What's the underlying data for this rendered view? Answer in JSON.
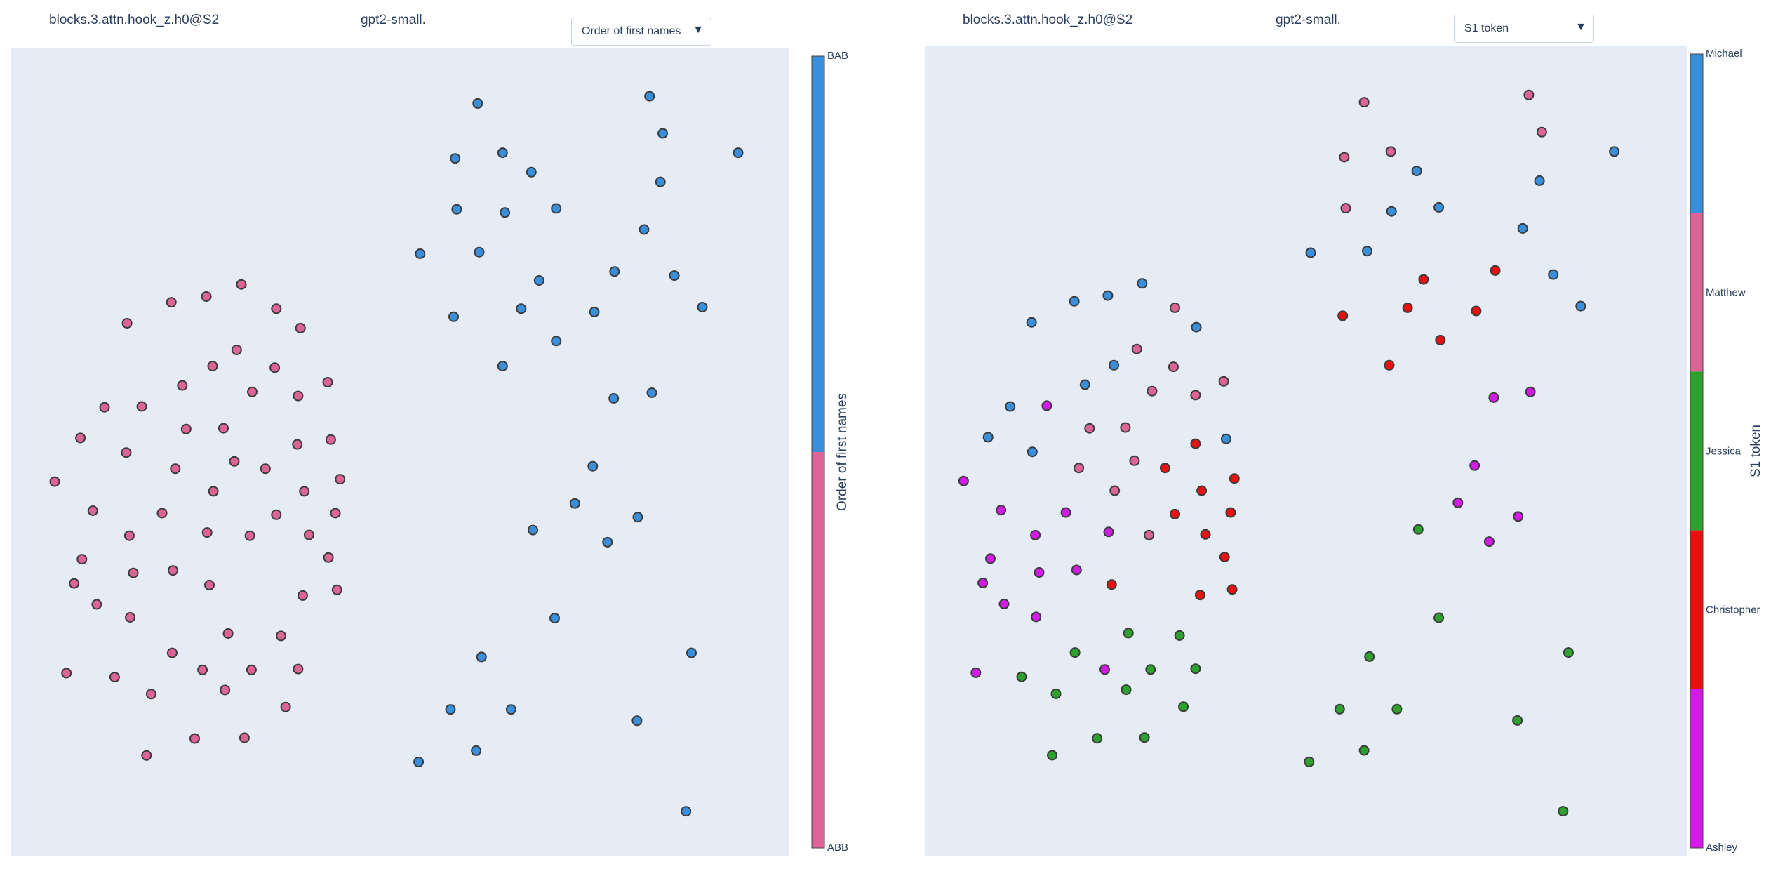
{
  "left": {
    "title": "blocks.3.attn.hook_z.h0@S2",
    "model": "gpt2-small.",
    "dropdown_label": "Order of first names",
    "colorbar_title": "Order of first names",
    "categories": [
      {
        "name": "BAB",
        "color": "#3a8fdb"
      },
      {
        "name": "ABB",
        "color": "#dc6496"
      }
    ]
  },
  "right": {
    "title": "blocks.3.attn.hook_z.h0@S2",
    "model": "gpt2-small.",
    "dropdown_label": "S1 token",
    "colorbar_title": "S1 token",
    "categories": [
      {
        "name": "Michael",
        "color": "#3a8fdb"
      },
      {
        "name": "Matthew",
        "color": "#dc6496"
      },
      {
        "name": "Jessica",
        "color": "#2ea02e"
      },
      {
        "name": "Christopher",
        "color": "#e81010"
      },
      {
        "name": "Ashley",
        "color": "#d21ce6"
      }
    ]
  },
  "dropdown_caret": "triangle-down-icon",
  "colors": {
    "plot_bg": "#e5ecf6",
    "marker_edge": "#3b3b3b"
  },
  "chart_data": [
    {
      "type": "scatter",
      "title": "blocks.3.attn.hook_z.h0@S2",
      "colorbar_title": "Order of first names",
      "xlim": [
        0,
        100
      ],
      "ylim": [
        0,
        100
      ],
      "legend": "right",
      "grid": false,
      "points": [
        {
          "x": 60.0,
          "y": 93.1,
          "c": "BAB"
        },
        {
          "x": 82.1,
          "y": 94.0,
          "c": "BAB"
        },
        {
          "x": 83.8,
          "y": 89.4,
          "c": "BAB"
        },
        {
          "x": 93.5,
          "y": 87.0,
          "c": "BAB"
        },
        {
          "x": 57.1,
          "y": 86.3,
          "c": "BAB"
        },
        {
          "x": 63.2,
          "y": 87.0,
          "c": "BAB"
        },
        {
          "x": 66.9,
          "y": 84.6,
          "c": "BAB"
        },
        {
          "x": 83.5,
          "y": 83.4,
          "c": "BAB"
        },
        {
          "x": 57.3,
          "y": 80.0,
          "c": "BAB"
        },
        {
          "x": 63.5,
          "y": 79.6,
          "c": "BAB"
        },
        {
          "x": 70.1,
          "y": 80.1,
          "c": "BAB"
        },
        {
          "x": 81.4,
          "y": 77.5,
          "c": "BAB"
        },
        {
          "x": 52.6,
          "y": 74.5,
          "c": "BAB"
        },
        {
          "x": 60.2,
          "y": 74.7,
          "c": "BAB"
        },
        {
          "x": 77.6,
          "y": 72.3,
          "c": "BAB"
        },
        {
          "x": 85.3,
          "y": 71.8,
          "c": "BAB"
        },
        {
          "x": 67.9,
          "y": 71.2,
          "c": "BAB"
        },
        {
          "x": 56.9,
          "y": 66.7,
          "c": "BAB"
        },
        {
          "x": 65.6,
          "y": 67.7,
          "c": "BAB"
        },
        {
          "x": 75.0,
          "y": 67.3,
          "c": "BAB"
        },
        {
          "x": 88.9,
          "y": 67.9,
          "c": "BAB"
        },
        {
          "x": 70.1,
          "y": 63.7,
          "c": "BAB"
        },
        {
          "x": 63.2,
          "y": 60.6,
          "c": "BAB"
        },
        {
          "x": 77.5,
          "y": 56.6,
          "c": "BAB"
        },
        {
          "x": 82.4,
          "y": 57.3,
          "c": "BAB"
        },
        {
          "x": 74.8,
          "y": 48.2,
          "c": "BAB"
        },
        {
          "x": 72.5,
          "y": 43.6,
          "c": "BAB"
        },
        {
          "x": 80.6,
          "y": 41.9,
          "c": "BAB"
        },
        {
          "x": 67.1,
          "y": 40.3,
          "c": "BAB"
        },
        {
          "x": 76.7,
          "y": 38.8,
          "c": "BAB"
        },
        {
          "x": 69.9,
          "y": 29.4,
          "c": "BAB"
        },
        {
          "x": 60.5,
          "y": 24.6,
          "c": "BAB"
        },
        {
          "x": 87.5,
          "y": 25.1,
          "c": "BAB"
        },
        {
          "x": 56.5,
          "y": 18.1,
          "c": "BAB"
        },
        {
          "x": 64.3,
          "y": 18.1,
          "c": "BAB"
        },
        {
          "x": 80.5,
          "y": 16.7,
          "c": "BAB"
        },
        {
          "x": 59.8,
          "y": 13.0,
          "c": "BAB"
        },
        {
          "x": 52.4,
          "y": 11.6,
          "c": "BAB"
        },
        {
          "x": 86.8,
          "y": 5.5,
          "c": "BAB"
        },
        {
          "x": 29.6,
          "y": 70.7,
          "c": "ABB"
        },
        {
          "x": 25.1,
          "y": 69.2,
          "c": "ABB"
        },
        {
          "x": 20.6,
          "y": 68.5,
          "c": "ABB"
        },
        {
          "x": 34.1,
          "y": 67.7,
          "c": "ABB"
        },
        {
          "x": 37.2,
          "y": 65.3,
          "c": "ABB"
        },
        {
          "x": 14.9,
          "y": 65.9,
          "c": "ABB"
        },
        {
          "x": 29.0,
          "y": 62.6,
          "c": "ABB"
        },
        {
          "x": 25.9,
          "y": 60.6,
          "c": "ABB"
        },
        {
          "x": 33.9,
          "y": 60.4,
          "c": "ABB"
        },
        {
          "x": 22.0,
          "y": 58.2,
          "c": "ABB"
        },
        {
          "x": 40.7,
          "y": 58.6,
          "c": "ABB"
        },
        {
          "x": 31.0,
          "y": 57.4,
          "c": "ABB"
        },
        {
          "x": 36.9,
          "y": 56.9,
          "c": "ABB"
        },
        {
          "x": 12.0,
          "y": 55.5,
          "c": "ABB"
        },
        {
          "x": 16.8,
          "y": 55.6,
          "c": "ABB"
        },
        {
          "x": 22.5,
          "y": 52.8,
          "c": "ABB"
        },
        {
          "x": 27.3,
          "y": 52.9,
          "c": "ABB"
        },
        {
          "x": 8.9,
          "y": 51.7,
          "c": "ABB"
        },
        {
          "x": 14.8,
          "y": 49.9,
          "c": "ABB"
        },
        {
          "x": 41.1,
          "y": 51.5,
          "c": "ABB"
        },
        {
          "x": 36.8,
          "y": 50.9,
          "c": "ABB"
        },
        {
          "x": 28.7,
          "y": 48.8,
          "c": "ABB"
        },
        {
          "x": 21.1,
          "y": 47.9,
          "c": "ABB"
        },
        {
          "x": 32.7,
          "y": 47.9,
          "c": "ABB"
        },
        {
          "x": 42.3,
          "y": 46.6,
          "c": "ABB"
        },
        {
          "x": 5.6,
          "y": 46.3,
          "c": "ABB"
        },
        {
          "x": 26.0,
          "y": 45.1,
          "c": "ABB"
        },
        {
          "x": 37.7,
          "y": 45.1,
          "c": "ABB"
        },
        {
          "x": 10.5,
          "y": 42.7,
          "c": "ABB"
        },
        {
          "x": 19.4,
          "y": 42.4,
          "c": "ABB"
        },
        {
          "x": 34.1,
          "y": 42.2,
          "c": "ABB"
        },
        {
          "x": 41.7,
          "y": 42.4,
          "c": "ABB"
        },
        {
          "x": 15.2,
          "y": 39.6,
          "c": "ABB"
        },
        {
          "x": 25.2,
          "y": 40.0,
          "c": "ABB"
        },
        {
          "x": 30.7,
          "y": 39.6,
          "c": "ABB"
        },
        {
          "x": 38.3,
          "y": 39.7,
          "c": "ABB"
        },
        {
          "x": 9.1,
          "y": 36.7,
          "c": "ABB"
        },
        {
          "x": 40.8,
          "y": 36.9,
          "c": "ABB"
        },
        {
          "x": 15.7,
          "y": 35.0,
          "c": "ABB"
        },
        {
          "x": 20.8,
          "y": 35.3,
          "c": "ABB"
        },
        {
          "x": 8.1,
          "y": 33.7,
          "c": "ABB"
        },
        {
          "x": 25.5,
          "y": 33.5,
          "c": "ABB"
        },
        {
          "x": 37.5,
          "y": 32.2,
          "c": "ABB"
        },
        {
          "x": 41.9,
          "y": 32.9,
          "c": "ABB"
        },
        {
          "x": 11.0,
          "y": 31.1,
          "c": "ABB"
        },
        {
          "x": 15.3,
          "y": 29.5,
          "c": "ABB"
        },
        {
          "x": 27.9,
          "y": 27.5,
          "c": "ABB"
        },
        {
          "x": 34.7,
          "y": 27.2,
          "c": "ABB"
        },
        {
          "x": 20.7,
          "y": 25.1,
          "c": "ABB"
        },
        {
          "x": 7.1,
          "y": 22.6,
          "c": "ABB"
        },
        {
          "x": 13.3,
          "y": 22.1,
          "c": "ABB"
        },
        {
          "x": 24.6,
          "y": 23.0,
          "c": "ABB"
        },
        {
          "x": 30.9,
          "y": 23.0,
          "c": "ABB"
        },
        {
          "x": 36.9,
          "y": 23.1,
          "c": "ABB"
        },
        {
          "x": 18.0,
          "y": 20.0,
          "c": "ABB"
        },
        {
          "x": 27.5,
          "y": 20.5,
          "c": "ABB"
        },
        {
          "x": 35.3,
          "y": 18.4,
          "c": "ABB"
        },
        {
          "x": 23.6,
          "y": 14.5,
          "c": "ABB"
        },
        {
          "x": 30.0,
          "y": 14.6,
          "c": "ABB"
        },
        {
          "x": 17.4,
          "y": 12.4,
          "c": "ABB"
        }
      ]
    },
    {
      "type": "scatter",
      "title": "blocks.3.attn.hook_z.h0@S2",
      "colorbar_title": "S1 token",
      "xlim": [
        0,
        100
      ],
      "ylim": [
        0,
        100
      ],
      "legend": "right",
      "grid": false,
      "points": [
        {
          "x": 57.6,
          "y": 93.1,
          "c": "Matthew"
        },
        {
          "x": 79.2,
          "y": 94.0,
          "c": "Matthew"
        },
        {
          "x": 80.9,
          "y": 89.4,
          "c": "Matthew"
        },
        {
          "x": 90.4,
          "y": 87.0,
          "c": "Michael"
        },
        {
          "x": 55.0,
          "y": 86.3,
          "c": "Matthew"
        },
        {
          "x": 61.1,
          "y": 87.0,
          "c": "Matthew"
        },
        {
          "x": 64.5,
          "y": 84.6,
          "c": "Michael"
        },
        {
          "x": 80.6,
          "y": 83.4,
          "c": "Michael"
        },
        {
          "x": 55.2,
          "y": 80.0,
          "c": "Matthew"
        },
        {
          "x": 61.2,
          "y": 79.6,
          "c": "Michael"
        },
        {
          "x": 67.4,
          "y": 80.1,
          "c": "Michael"
        },
        {
          "x": 78.4,
          "y": 77.5,
          "c": "Michael"
        },
        {
          "x": 50.6,
          "y": 74.5,
          "c": "Michael"
        },
        {
          "x": 58.0,
          "y": 74.7,
          "c": "Michael"
        },
        {
          "x": 74.8,
          "y": 72.3,
          "c": "Red"
        },
        {
          "x": 82.4,
          "y": 71.8,
          "c": "Michael"
        },
        {
          "x": 65.4,
          "y": 71.2,
          "c": "Red"
        },
        {
          "x": 54.8,
          "y": 66.7,
          "c": "Red"
        },
        {
          "x": 63.3,
          "y": 67.7,
          "c": "Red"
        },
        {
          "x": 72.3,
          "y": 67.3,
          "c": "Red"
        },
        {
          "x": 86.0,
          "y": 67.9,
          "c": "Michael"
        },
        {
          "x": 67.6,
          "y": 63.7,
          "c": "Red"
        },
        {
          "x": 60.9,
          "y": 60.6,
          "c": "Red"
        },
        {
          "x": 74.6,
          "y": 56.6,
          "c": "Ashley"
        },
        {
          "x": 79.4,
          "y": 57.3,
          "c": "Ashley"
        },
        {
          "x": 72.1,
          "y": 48.2,
          "c": "Ashley"
        },
        {
          "x": 69.9,
          "y": 43.6,
          "c": "Ashley"
        },
        {
          "x": 77.8,
          "y": 41.9,
          "c": "Ashley"
        },
        {
          "x": 64.7,
          "y": 40.3,
          "c": "Jessica"
        },
        {
          "x": 74.0,
          "y": 38.8,
          "c": "Ashley"
        },
        {
          "x": 67.4,
          "y": 29.4,
          "c": "Jessica"
        },
        {
          "x": 58.3,
          "y": 24.6,
          "c": "Jessica"
        },
        {
          "x": 84.4,
          "y": 25.1,
          "c": "Jessica"
        },
        {
          "x": 54.4,
          "y": 18.1,
          "c": "Jessica"
        },
        {
          "x": 61.9,
          "y": 18.1,
          "c": "Jessica"
        },
        {
          "x": 77.7,
          "y": 16.7,
          "c": "Jessica"
        },
        {
          "x": 57.6,
          "y": 13.0,
          "c": "Jessica"
        },
        {
          "x": 50.4,
          "y": 11.6,
          "c": "Jessica"
        },
        {
          "x": 83.7,
          "y": 5.5,
          "c": "Jessica"
        },
        {
          "x": 28.5,
          "y": 70.7,
          "c": "Michael"
        },
        {
          "x": 24.0,
          "y": 69.2,
          "c": "Michael"
        },
        {
          "x": 19.6,
          "y": 68.5,
          "c": "Michael"
        },
        {
          "x": 32.8,
          "y": 67.7,
          "c": "Matthew"
        },
        {
          "x": 35.6,
          "y": 65.3,
          "c": "Michael"
        },
        {
          "x": 14.0,
          "y": 65.9,
          "c": "Michael"
        },
        {
          "x": 27.8,
          "y": 62.6,
          "c": "Matthew"
        },
        {
          "x": 24.8,
          "y": 60.6,
          "c": "Michael"
        },
        {
          "x": 32.6,
          "y": 60.4,
          "c": "Matthew"
        },
        {
          "x": 21.0,
          "y": 58.2,
          "c": "Michael"
        },
        {
          "x": 39.2,
          "y": 58.6,
          "c": "Matthew"
        },
        {
          "x": 29.8,
          "y": 57.4,
          "c": "Matthew"
        },
        {
          "x": 35.5,
          "y": 56.9,
          "c": "Matthew"
        },
        {
          "x": 11.2,
          "y": 55.5,
          "c": "Michael"
        },
        {
          "x": 16.0,
          "y": 55.6,
          "c": "Ashley"
        },
        {
          "x": 21.6,
          "y": 52.8,
          "c": "Matthew"
        },
        {
          "x": 26.3,
          "y": 52.9,
          "c": "Matthew"
        },
        {
          "x": 8.3,
          "y": 51.7,
          "c": "Michael"
        },
        {
          "x": 14.1,
          "y": 49.9,
          "c": "Michael"
        },
        {
          "x": 39.5,
          "y": 51.5,
          "c": "Michael"
        },
        {
          "x": 35.5,
          "y": 50.9,
          "c": "Red"
        },
        {
          "x": 27.5,
          "y": 48.8,
          "c": "Matthew"
        },
        {
          "x": 20.2,
          "y": 47.9,
          "c": "Matthew"
        },
        {
          "x": 31.5,
          "y": 47.9,
          "c": "Red"
        },
        {
          "x": 40.6,
          "y": 46.6,
          "c": "Red"
        },
        {
          "x": 5.1,
          "y": 46.3,
          "c": "Ashley"
        },
        {
          "x": 24.9,
          "y": 45.1,
          "c": "Matthew"
        },
        {
          "x": 36.3,
          "y": 45.1,
          "c": "Red"
        },
        {
          "x": 10.0,
          "y": 42.7,
          "c": "Ashley"
        },
        {
          "x": 18.5,
          "y": 42.4,
          "c": "Ashley"
        },
        {
          "x": 32.8,
          "y": 42.2,
          "c": "Red"
        },
        {
          "x": 40.1,
          "y": 42.4,
          "c": "Red"
        },
        {
          "x": 14.5,
          "y": 39.6,
          "c": "Ashley"
        },
        {
          "x": 24.1,
          "y": 40.0,
          "c": "Ashley"
        },
        {
          "x": 29.4,
          "y": 39.6,
          "c": "Matthew"
        },
        {
          "x": 36.8,
          "y": 39.7,
          "c": "Red"
        },
        {
          "x": 8.6,
          "y": 36.7,
          "c": "Ashley"
        },
        {
          "x": 39.3,
          "y": 36.9,
          "c": "Red"
        },
        {
          "x": 15.0,
          "y": 35.0,
          "c": "Ashley"
        },
        {
          "x": 19.9,
          "y": 35.3,
          "c": "Ashley"
        },
        {
          "x": 7.6,
          "y": 33.7,
          "c": "Ashley"
        },
        {
          "x": 24.5,
          "y": 33.5,
          "c": "Red"
        },
        {
          "x": 36.1,
          "y": 32.2,
          "c": "Red"
        },
        {
          "x": 40.3,
          "y": 32.9,
          "c": "Red"
        },
        {
          "x": 10.4,
          "y": 31.1,
          "c": "Ashley"
        },
        {
          "x": 14.6,
          "y": 29.5,
          "c": "Ashley"
        },
        {
          "x": 26.7,
          "y": 27.5,
          "c": "Jessica"
        },
        {
          "x": 33.4,
          "y": 27.2,
          "c": "Jessica"
        },
        {
          "x": 19.7,
          "y": 25.1,
          "c": "Jessica"
        },
        {
          "x": 6.7,
          "y": 22.6,
          "c": "Ashley"
        },
        {
          "x": 12.7,
          "y": 22.1,
          "c": "Jessica"
        },
        {
          "x": 23.6,
          "y": 23.0,
          "c": "Ashley"
        },
        {
          "x": 29.6,
          "y": 23.0,
          "c": "Jessica"
        },
        {
          "x": 35.5,
          "y": 23.1,
          "c": "Jessica"
        },
        {
          "x": 17.2,
          "y": 20.0,
          "c": "Jessica"
        },
        {
          "x": 26.4,
          "y": 20.5,
          "c": "Jessica"
        },
        {
          "x": 33.9,
          "y": 18.4,
          "c": "Jessica"
        },
        {
          "x": 22.6,
          "y": 14.5,
          "c": "Jessica"
        },
        {
          "x": 28.8,
          "y": 14.6,
          "c": "Jessica"
        },
        {
          "x": 16.7,
          "y": 12.4,
          "c": "Jessica"
        }
      ]
    }
  ]
}
